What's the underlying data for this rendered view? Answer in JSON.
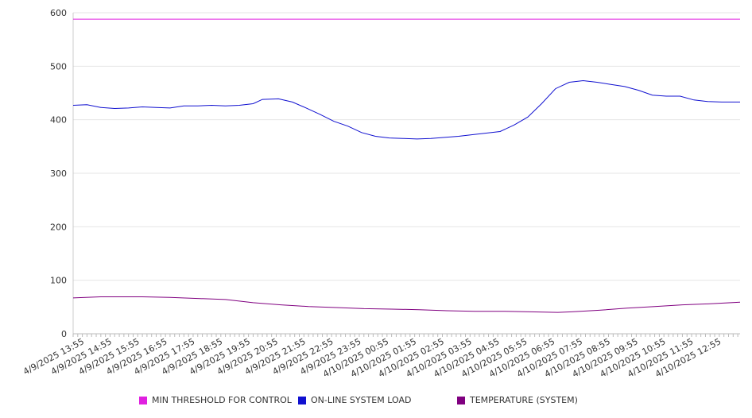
{
  "chart_data": {
    "type": "line",
    "y_ticks": [
      "0",
      "100",
      "200",
      "300",
      "400",
      "500",
      "600"
    ],
    "ylim": [
      0,
      600
    ],
    "grid": true,
    "x_tick_labels": [
      "4/9/2025 13:55",
      "4/9/2025 14:55",
      "4/9/2025 15:55",
      "4/9/2025 16:55",
      "4/9/2025 17:55",
      "4/9/2025 18:55",
      "4/9/2025 19:55",
      "4/9/2025 20:55",
      "4/9/2025 21:55",
      "4/9/2025 22:55",
      "4/9/2025 23:55",
      "4/10/2025 00:55",
      "4/10/2025 01:55",
      "4/10/2025 02:55",
      "4/10/2025 03:55",
      "4/10/2025 04:55",
      "4/10/2025 05:55",
      "4/10/2025 06:55",
      "4/10/2025 07:55",
      "4/10/2025 08:55",
      "4/10/2025 09:55",
      "4/10/2025 10:55",
      "4/10/2025 11:55",
      "4/10/2025 12:55"
    ],
    "x_range": [
      "4/9/2025 13:30",
      "4/10/2025 13:35"
    ],
    "legend_position": "bottom",
    "series": [
      {
        "name": "MIN THRESHOLD FOR CONTROL",
        "color": "#e020e0",
        "points": [
          [
            "4/9/2025 13:30",
            588
          ],
          [
            "4/10/2025 13:35",
            588
          ]
        ]
      },
      {
        "name": "ON-LINE SYSTEM LOAD",
        "color": "#1010d0",
        "points": [
          [
            "4/9/2025 13:30",
            427
          ],
          [
            "4/9/2025 14:00",
            428
          ],
          [
            "4/9/2025 14:30",
            423
          ],
          [
            "4/9/2025 15:00",
            421
          ],
          [
            "4/9/2025 15:30",
            422
          ],
          [
            "4/9/2025 16:00",
            424
          ],
          [
            "4/9/2025 16:30",
            423
          ],
          [
            "4/9/2025 17:00",
            422
          ],
          [
            "4/9/2025 17:30",
            426
          ],
          [
            "4/9/2025 18:00",
            426
          ],
          [
            "4/9/2025 18:30",
            427
          ],
          [
            "4/9/2025 19:00",
            426
          ],
          [
            "4/9/2025 19:30",
            427
          ],
          [
            "4/9/2025 20:00",
            430
          ],
          [
            "4/9/2025 20:20",
            438
          ],
          [
            "4/9/2025 20:55",
            439
          ],
          [
            "4/9/2025 21:25",
            433
          ],
          [
            "4/9/2025 21:55",
            422
          ],
          [
            "4/9/2025 22:25",
            410
          ],
          [
            "4/9/2025 22:55",
            397
          ],
          [
            "4/9/2025 23:25",
            388
          ],
          [
            "4/9/2025 23:55",
            376
          ],
          [
            "4/10/2025 00:25",
            369
          ],
          [
            "4/10/2025 00:55",
            366
          ],
          [
            "4/10/2025 01:25",
            365
          ],
          [
            "4/10/2025 01:55",
            364
          ],
          [
            "4/10/2025 02:25",
            365
          ],
          [
            "4/10/2025 02:55",
            367
          ],
          [
            "4/10/2025 03:25",
            369
          ],
          [
            "4/10/2025 03:55",
            372
          ],
          [
            "4/10/2025 04:25",
            375
          ],
          [
            "4/10/2025 04:55",
            378
          ],
          [
            "4/10/2025 05:25",
            390
          ],
          [
            "4/10/2025 05:55",
            405
          ],
          [
            "4/10/2025 06:25",
            430
          ],
          [
            "4/10/2025 06:55",
            458
          ],
          [
            "4/10/2025 07:25",
            470
          ],
          [
            "4/10/2025 07:55",
            473
          ],
          [
            "4/10/2025 08:25",
            470
          ],
          [
            "4/10/2025 08:55",
            466
          ],
          [
            "4/10/2025 09:25",
            462
          ],
          [
            "4/10/2025 09:55",
            455
          ],
          [
            "4/10/2025 10:25",
            446
          ],
          [
            "4/10/2025 10:55",
            444
          ],
          [
            "4/10/2025 11:25",
            444
          ],
          [
            "4/10/2025 11:55",
            437
          ],
          [
            "4/10/2025 12:25",
            434
          ],
          [
            "4/10/2025 12:55",
            433
          ],
          [
            "4/10/2025 13:35",
            433
          ]
        ]
      },
      {
        "name": "TEMPERATURE (SYSTEM)",
        "color": "#800080",
        "points": [
          [
            "4/9/2025 13:30",
            67
          ],
          [
            "4/9/2025 14:30",
            69
          ],
          [
            "4/9/2025 16:00",
            69
          ],
          [
            "4/9/2025 17:00",
            68
          ],
          [
            "4/9/2025 18:00",
            66
          ],
          [
            "4/9/2025 19:00",
            64
          ],
          [
            "4/9/2025 20:00",
            58
          ],
          [
            "4/9/2025 21:00",
            54
          ],
          [
            "4/9/2025 22:00",
            51
          ],
          [
            "4/9/2025 23:00",
            49
          ],
          [
            "4/10/2025 00:00",
            47
          ],
          [
            "4/10/2025 01:00",
            46
          ],
          [
            "4/10/2025 02:00",
            45
          ],
          [
            "4/10/2025 03:00",
            43
          ],
          [
            "4/10/2025 04:00",
            42
          ],
          [
            "4/10/2025 05:00",
            42
          ],
          [
            "4/10/2025 06:00",
            41
          ],
          [
            "4/10/2025 07:00",
            40
          ],
          [
            "4/10/2025 07:30",
            41
          ],
          [
            "4/10/2025 08:30",
            44
          ],
          [
            "4/10/2025 09:30",
            48
          ],
          [
            "4/10/2025 10:30",
            51
          ],
          [
            "4/10/2025 11:30",
            54
          ],
          [
            "4/10/2025 12:30",
            56
          ],
          [
            "4/10/2025 13:35",
            59
          ]
        ]
      }
    ]
  }
}
